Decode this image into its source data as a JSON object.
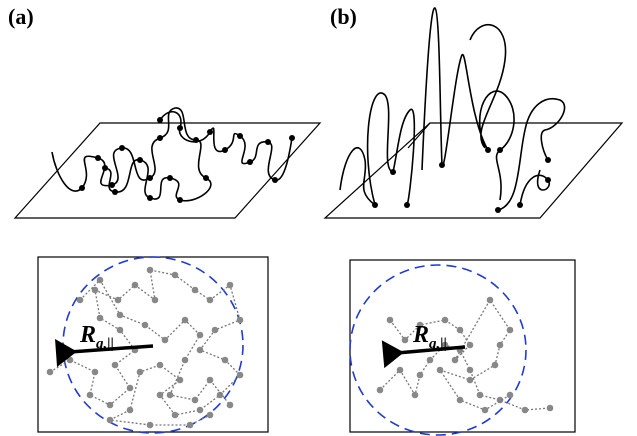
{
  "panels": [
    {
      "label": "(a)",
      "radius_label": {
        "symbol": "R",
        "subscript": "g,||"
      }
    },
    {
      "label": "(b)",
      "radius_label": {
        "symbol": "R",
        "subscript": "g,||"
      }
    }
  ]
}
